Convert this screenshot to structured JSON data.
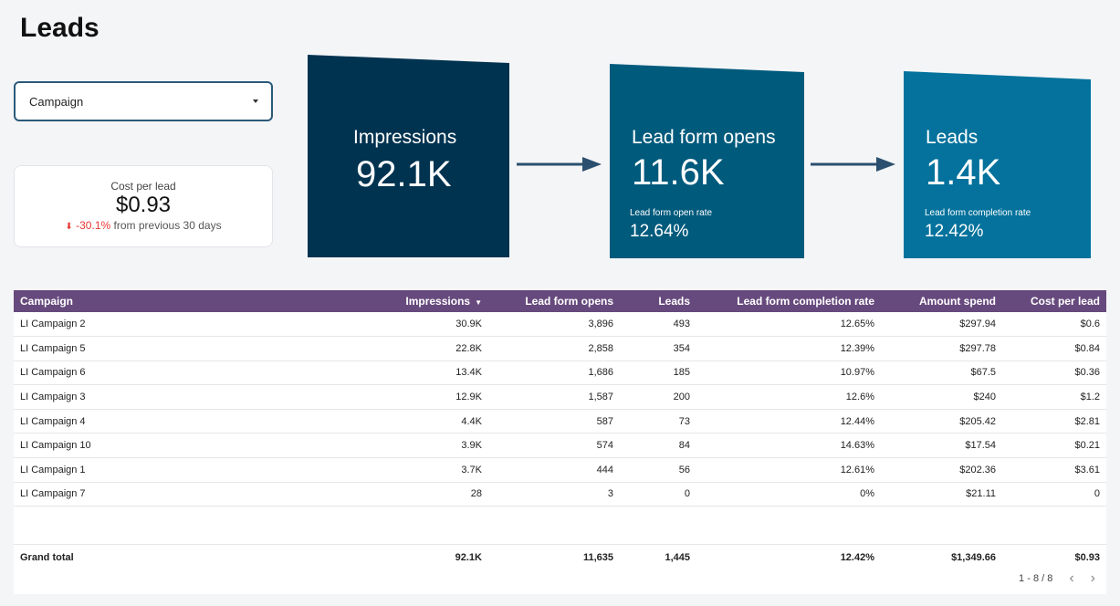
{
  "page": {
    "title": "Leads"
  },
  "filter": {
    "label": "Campaign"
  },
  "cost_per_lead": {
    "label": "Cost per lead",
    "value": "$0.93",
    "delta": "-30.1%",
    "delta_text": "from previous 30 days"
  },
  "funnel": [
    {
      "title": "Impressions",
      "value": "92.1K",
      "color": "#003350"
    },
    {
      "title": "Lead form opens",
      "value": "11.6K",
      "sub_label": "Lead form open rate",
      "sub_value": "12.64%",
      "color": "#005a7c"
    },
    {
      "title": "Leads",
      "value": "1.4K",
      "sub_label": "Lead form completion rate",
      "sub_value": "12.42%",
      "color": "#04729c"
    }
  ],
  "table": {
    "columns": [
      "Campaign",
      "Impressions",
      "Lead form opens",
      "Leads",
      "Lead form completion rate",
      "Amount spend",
      "Cost per lead"
    ],
    "rows": [
      [
        "LI Campaign 2",
        "30.9K",
        "3,896",
        "493",
        "12.65%",
        "$297.94",
        "$0.6"
      ],
      [
        "LI Campaign 5",
        "22.8K",
        "2,858",
        "354",
        "12.39%",
        "$297.78",
        "$0.84"
      ],
      [
        "LI Campaign 6",
        "13.4K",
        "1,686",
        "185",
        "10.97%",
        "$67.5",
        "$0.36"
      ],
      [
        "LI Campaign 3",
        "12.9K",
        "1,587",
        "200",
        "12.6%",
        "$240",
        "$1.2"
      ],
      [
        "LI Campaign 4",
        "4.4K",
        "587",
        "73",
        "12.44%",
        "$205.42",
        "$2.81"
      ],
      [
        "LI Campaign 10",
        "3.9K",
        "574",
        "84",
        "14.63%",
        "$17.54",
        "$0.21"
      ],
      [
        "LI Campaign 1",
        "3.7K",
        "444",
        "56",
        "12.61%",
        "$202.36",
        "$3.61"
      ],
      [
        "LI Campaign 7",
        "28",
        "3",
        "0",
        "0%",
        "$21.11",
        "0"
      ]
    ],
    "total": [
      "Grand total",
      "92.1K",
      "11,635",
      "1,445",
      "12.42%",
      "$1,349.66",
      "$0.93"
    ],
    "pagination": "1 - 8 / 8"
  }
}
